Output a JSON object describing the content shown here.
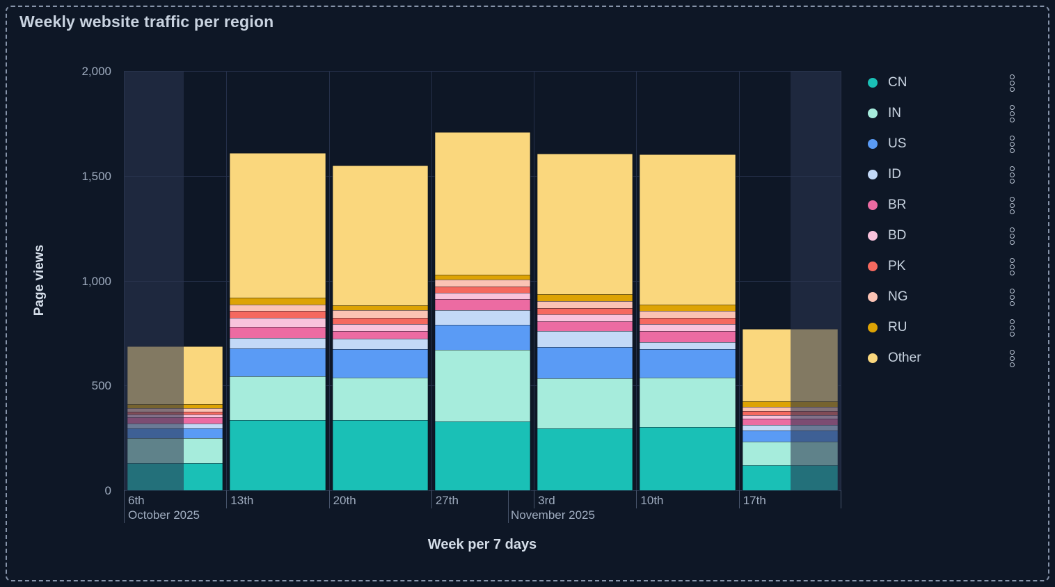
{
  "panel": {
    "title": "Weekly website traffic per region",
    "background_color": "#0E1726",
    "border_color": "#8693A9",
    "title_color": "#C9D3E0",
    "axis_text_color": "#9FACBF"
  },
  "chart_data": {
    "type": "bar",
    "stacked": true,
    "title": "Weekly website traffic per region",
    "xlabel": "Week per 7 days",
    "ylabel": "Page views",
    "ylim": [
      0,
      2000
    ],
    "ytick_labels": [
      "0",
      "500",
      "1,000",
      "1,500",
      "2,000"
    ],
    "yticks": [
      0,
      500,
      1000,
      1500,
      2000
    ],
    "grid": true,
    "legend_position": "right",
    "categories": [
      "6th",
      "13th",
      "20th",
      "27th",
      "3rd",
      "10th",
      "17th"
    ],
    "month_labels": [
      {
        "label": "October 2025",
        "tick_index": 0
      },
      {
        "label": "November 2025",
        "between": "27th and 3rd"
      }
    ],
    "partial_buckets": [
      "6th (first half dimmed)",
      "17th (second half dimmed)"
    ],
    "series": [
      {
        "name": "CN",
        "color": "#1AC0B6",
        "values": [
          130,
          335,
          335,
          330,
          295,
          303,
          119
        ]
      },
      {
        "name": "IN",
        "color": "#A6ECDC",
        "values": [
          120,
          210,
          202,
          340,
          240,
          236,
          114
        ]
      },
      {
        "name": "US",
        "color": "#5A9BF5",
        "values": [
          45,
          133,
          138,
          119,
          147,
          135,
          52
        ]
      },
      {
        "name": "ID",
        "color": "#C3D9F7",
        "values": [
          22,
          50,
          48,
          70,
          79,
          34,
          28
        ]
      },
      {
        "name": "BR",
        "color": "#EC6BA2",
        "values": [
          30,
          52,
          38,
          54,
          45,
          51,
          28
        ]
      },
      {
        "name": "BD",
        "color": "#F9C3DC",
        "values": [
          13,
          42,
          31,
          30,
          34,
          34,
          17
        ]
      },
      {
        "name": "PK",
        "color": "#F5695F",
        "values": [
          16,
          33,
          31,
          28,
          28,
          28,
          20
        ]
      },
      {
        "name": "NG",
        "color": "#FBC3B4",
        "values": [
          15,
          30,
          35,
          33,
          34,
          34,
          19
        ]
      },
      {
        "name": "RU",
        "color": "#DDA304",
        "values": [
          19,
          33,
          25,
          23,
          33,
          31,
          26
        ]
      },
      {
        "name": "Other",
        "color": "#FAD77D",
        "values": [
          278,
          690,
          667,
          680,
          672,
          717,
          346
        ]
      }
    ]
  },
  "legend": {
    "items": [
      "CN",
      "IN",
      "US",
      "ID",
      "BR",
      "BD",
      "PK",
      "NG",
      "RU",
      "Other"
    ],
    "action_icon": "vertical-dots-icon"
  }
}
